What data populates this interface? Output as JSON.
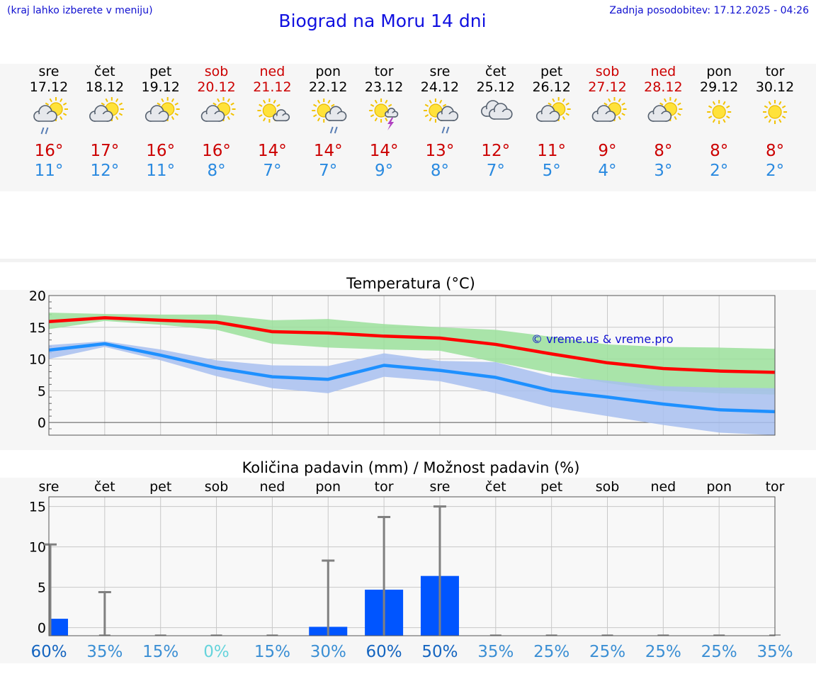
{
  "header": {
    "hint": "(kraj lahko izberete v meniju)",
    "title": "Biograd na Moru 14 dni",
    "updated": "Zadnja posodobitev: 17.12.2025 - 04:26"
  },
  "colors": {
    "weekday": "#000000",
    "weekend": "#cc0000",
    "max_temp": "#cc0000",
    "min_temp": "#2a8ae0",
    "max_line": "#ff0000",
    "min_line": "#1e90ff",
    "max_band": "#9be09b",
    "min_band": "#a8c0f0",
    "precip_bar": "#0055ff",
    "precip_range": "#808080"
  },
  "days": [
    {
      "name": "sre",
      "date": "17.12",
      "icon": "partly-cloudy-rain-icon",
      "max": "16°",
      "min": "11°",
      "weekend": false
    },
    {
      "name": "čet",
      "date": "18.12",
      "icon": "partly-cloudy-icon",
      "max": "17°",
      "min": "12°",
      "weekend": false
    },
    {
      "name": "pet",
      "date": "19.12",
      "icon": "partly-cloudy-icon",
      "max": "16°",
      "min": "11°",
      "weekend": false
    },
    {
      "name": "sob",
      "date": "20.12",
      "icon": "partly-cloudy-icon",
      "max": "16°",
      "min": "8°",
      "weekend": true
    },
    {
      "name": "ned",
      "date": "21.12",
      "icon": "sun-small-cloud-icon",
      "max": "14°",
      "min": "7°",
      "weekend": true
    },
    {
      "name": "pon",
      "date": "22.12",
      "icon": "sun-cloud-rain-icon",
      "max": "14°",
      "min": "7°",
      "weekend": false
    },
    {
      "name": "tor",
      "date": "23.12",
      "icon": "sun-thunder-icon",
      "max": "14°",
      "min": "9°",
      "weekend": false
    },
    {
      "name": "sre",
      "date": "24.12",
      "icon": "sun-cloud-rain-icon",
      "max": "13°",
      "min": "8°",
      "weekend": false
    },
    {
      "name": "čet",
      "date": "25.12",
      "icon": "cloudy-icon",
      "max": "12°",
      "min": "7°",
      "weekend": false
    },
    {
      "name": "pet",
      "date": "26.12",
      "icon": "partly-cloudy-icon",
      "max": "11°",
      "min": "5°",
      "weekend": false
    },
    {
      "name": "sob",
      "date": "27.12",
      "icon": "partly-cloudy-icon",
      "max": "9°",
      "min": "4°",
      "weekend": true
    },
    {
      "name": "ned",
      "date": "28.12",
      "icon": "partly-cloudy-icon",
      "max": "8°",
      "min": "3°",
      "weekend": true
    },
    {
      "name": "pon",
      "date": "29.12",
      "icon": "sun-icon",
      "max": "8°",
      "min": "2°",
      "weekend": false
    },
    {
      "name": "tor",
      "date": "30.12",
      "icon": "sun-icon",
      "max": "8°",
      "min": "2°",
      "weekend": false
    }
  ],
  "chart_data": [
    {
      "type": "line",
      "title": "Temperatura (°C)",
      "xlabel": "",
      "ylabel": "",
      "ylim": [
        -2,
        20
      ],
      "yticks": [
        "0",
        "5",
        "10",
        "15",
        "20"
      ],
      "x": [
        0,
        1,
        2,
        3,
        4,
        5,
        6,
        7,
        8,
        9,
        10,
        11,
        12,
        13
      ],
      "series": [
        {
          "name": "max",
          "values": [
            15.9,
            16.5,
            16.1,
            15.8,
            14.3,
            14.1,
            13.6,
            13.3,
            12.3,
            10.8,
            9.4,
            8.5,
            8.1,
            7.9
          ],
          "band_low": [
            14.7,
            16.0,
            15.4,
            14.6,
            12.4,
            11.8,
            11.5,
            11.3,
            9.5,
            7.8,
            6.2,
            5.0,
            4.6,
            4.4
          ],
          "band_high": [
            17.3,
            17.1,
            17.0,
            17.0,
            16.1,
            16.3,
            15.5,
            15.0,
            14.6,
            13.5,
            12.3,
            11.9,
            11.8,
            11.6
          ]
        },
        {
          "name": "min",
          "values": [
            11.4,
            12.4,
            10.6,
            8.6,
            7.2,
            6.8,
            9.0,
            8.2,
            7.1,
            5.0,
            4.0,
            2.9,
            2.0,
            1.7
          ],
          "band_low": [
            10.0,
            11.9,
            9.8,
            7.3,
            5.4,
            4.6,
            7.2,
            6.5,
            4.6,
            2.4,
            1.0,
            -0.4,
            -1.6,
            -2.0
          ],
          "band_high": [
            12.2,
            12.8,
            11.5,
            9.8,
            9.0,
            8.9,
            10.9,
            9.7,
            9.5,
            7.3,
            6.6,
            5.7,
            5.5,
            5.4
          ]
        }
      ],
      "watermark": "© vreme.us & vreme.pro"
    },
    {
      "type": "bar",
      "title": "Količina padavin (mm) / Možnost padavin (%)",
      "categories": [
        "sre",
        "čet",
        "pet",
        "sob",
        "ned",
        "pon",
        "tor",
        "sre",
        "čet",
        "pet",
        "sob",
        "ned",
        "pon",
        "tor"
      ],
      "values": [
        1.1,
        0,
        0,
        0,
        0,
        0.1,
        4.7,
        6.4,
        0,
        0,
        0,
        0,
        0,
        0
      ],
      "range_max": [
        10.3,
        4.4,
        0,
        0,
        0,
        8.3,
        13.7,
        15.0,
        0,
        0,
        0,
        0,
        0,
        0
      ],
      "probability": [
        "60%",
        "35%",
        "15%",
        "0%",
        "15%",
        "30%",
        "60%",
        "50%",
        "35%",
        "25%",
        "25%",
        "25%",
        "25%",
        "35%"
      ],
      "ylim": [
        -1,
        16.2
      ],
      "yticks": [
        "0",
        "5",
        "10",
        "15"
      ],
      "xlabel": "",
      "ylabel": ""
    }
  ]
}
